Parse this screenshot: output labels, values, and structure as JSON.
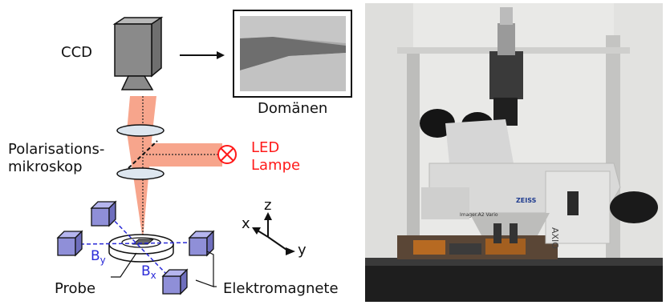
{
  "labels": {
    "ccd": "CCD",
    "domains": "Domänen",
    "polarisation_line1": "Polarisations-",
    "polarisation_line2": "mikroskop",
    "led_line1": "LED",
    "led_line2": "Lampe",
    "probe": "Probe",
    "electromagnets": "Elektromagnete",
    "field_y": "B",
    "field_y_sub": "y",
    "field_x": "B",
    "field_x_sub": "x",
    "axis_x": "x",
    "axis_y": "y",
    "axis_z": "z"
  },
  "photo_text": {
    "brand": "ZEISS",
    "model": "Imager.A2 Vario",
    "axio": "AXIO"
  },
  "colors": {
    "beam": "#f7a58c",
    "magnet": "#8f8fd8",
    "led_red": "#ff1a1a",
    "field_blue": "#2b2bd8",
    "camera": "#8a8a8a"
  }
}
